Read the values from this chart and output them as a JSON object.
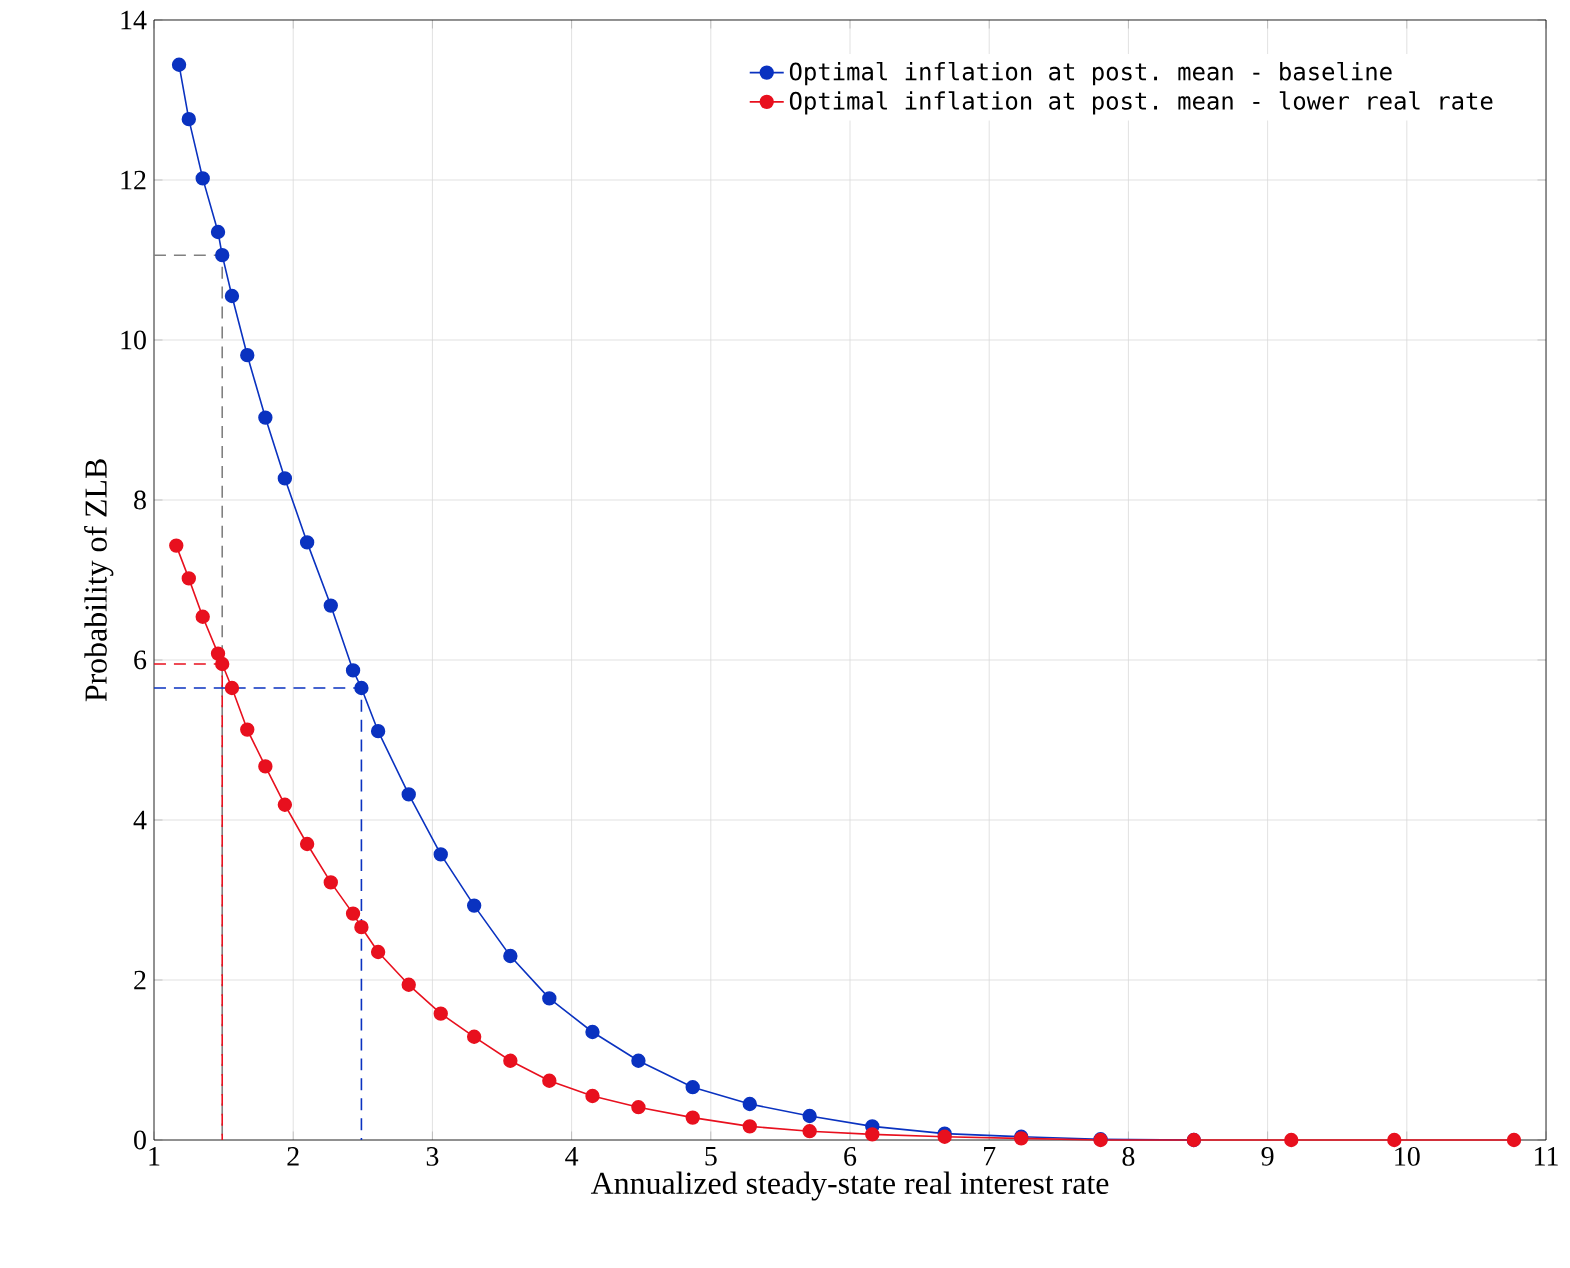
{
  "chart_data": {
    "type": "line",
    "xlabel": "Annualized steady-state real interest rate",
    "ylabel": "Probability of ZLB",
    "xlim": [
      1,
      11
    ],
    "ylim": [
      0,
      14
    ],
    "xticks": [
      1,
      2,
      3,
      4,
      5,
      6,
      7,
      8,
      9,
      10,
      11
    ],
    "yticks": [
      0,
      2,
      4,
      6,
      8,
      10,
      12,
      14
    ],
    "grid": true,
    "legend": "top right",
    "marker": "circle",
    "line_style": "solid",
    "series": [
      {
        "name": "Optimal inflation at post. mean - baseline",
        "color": "#0a32c0",
        "x": [
          1.18,
          1.25,
          1.35,
          1.46,
          1.49,
          1.56,
          1.67,
          1.8,
          1.94,
          2.1,
          2.27,
          2.43,
          2.49,
          2.61,
          2.83,
          3.06,
          3.3,
          3.56,
          3.84,
          4.15,
          4.48,
          4.87,
          5.28,
          5.71,
          6.16,
          6.68,
          7.23,
          7.8,
          8.47
        ],
        "values": [
          13.44,
          12.76,
          12.02,
          11.35,
          11.06,
          10.55,
          9.81,
          9.03,
          8.27,
          7.47,
          6.68,
          5.87,
          5.65,
          5.11,
          4.32,
          3.57,
          2.93,
          2.3,
          1.77,
          1.35,
          0.99,
          0.66,
          0.45,
          0.3,
          0.17,
          0.08,
          0.04,
          0.01,
          0
        ]
      },
      {
        "name": "Optimal inflation at post. mean - lower real rate",
        "color": "#e8101e",
        "x": [
          1.16,
          1.25,
          1.35,
          1.46,
          1.49,
          1.56,
          1.67,
          1.8,
          1.94,
          2.1,
          2.27,
          2.43,
          2.49,
          2.61,
          2.83,
          3.06,
          3.3,
          3.56,
          3.84,
          4.15,
          4.48,
          4.87,
          5.28,
          5.71,
          6.16,
          6.68,
          7.23,
          7.8,
          8.47,
          9.17,
          9.91,
          10.77
        ],
        "values": [
          7.43,
          7.02,
          6.54,
          6.08,
          5.95,
          5.65,
          5.13,
          4.67,
          4.19,
          3.7,
          3.22,
          2.83,
          2.66,
          2.35,
          1.94,
          1.58,
          1.29,
          0.99,
          0.74,
          0.55,
          0.41,
          0.28,
          0.17,
          0.11,
          0.07,
          0.04,
          0.02,
          0,
          0,
          0,
          0,
          0
        ]
      },
      {
        "color": "#808080",
        "marker": "none",
        "line_style": "dashed",
        "x": [
          1,
          1.49,
          1.49
        ],
        "values": [
          11.06,
          11.06,
          0
        ]
      },
      {
        "color": "#e8101e",
        "marker": "none",
        "line_style": "dashed",
        "x": [
          1,
          1.49,
          1.49
        ],
        "values": [
          5.95,
          5.95,
          0
        ]
      },
      {
        "color": "#0a32c0",
        "marker": "none",
        "line_style": "dashed",
        "x": [
          1,
          2.49,
          2.49
        ],
        "values": [
          5.65,
          5.65,
          0
        ]
      }
    ]
  }
}
